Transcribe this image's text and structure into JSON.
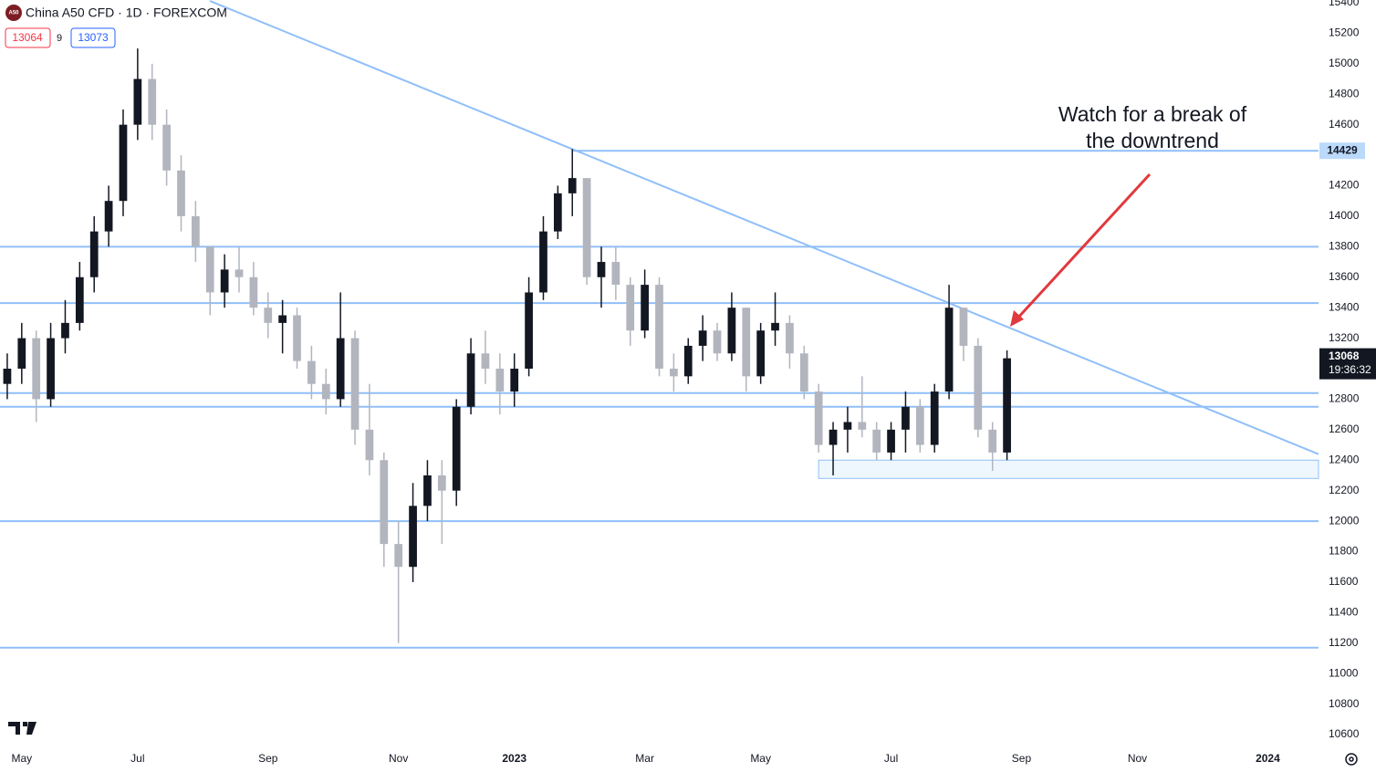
{
  "header": {
    "symbol": "China A50 CFD · 1D · FOREXCOM",
    "logo": "A50",
    "bid": "13064",
    "spread": "9",
    "ask": "13073"
  },
  "chart_data": {
    "type": "candlestick",
    "categories": [
      null,
      "May",
      null,
      null,
      null,
      null,
      null,
      null,
      null,
      "Jul",
      null,
      null,
      null,
      null,
      null,
      null,
      null,
      null,
      "Sep",
      null,
      null,
      null,
      null,
      null,
      null,
      null,
      null,
      "Nov",
      null,
      null,
      null,
      null,
      null,
      null,
      null,
      "2023",
      null,
      null,
      null,
      null,
      null,
      null,
      null,
      null,
      "Mar",
      null,
      null,
      null,
      null,
      null,
      null,
      null,
      "May",
      null,
      null,
      null,
      null,
      null,
      null,
      null,
      null,
      "Jul",
      null,
      null,
      null,
      null,
      null,
      null,
      null,
      null,
      "Sep",
      null,
      null,
      null,
      null,
      null,
      null,
      null,
      "Nov",
      null,
      null,
      null,
      null,
      null,
      null,
      null,
      null,
      "2024",
      null,
      null,
      null
    ],
    "open": [
      12900,
      13000,
      13200,
      12800,
      13200,
      13300,
      13600,
      13900,
      14100,
      14600,
      14900,
      14600,
      14300,
      14000,
      13800,
      13500,
      13650,
      13600,
      13400,
      13300,
      13350,
      13050,
      12900,
      12800,
      13200,
      12600,
      12400,
      11850,
      11700,
      12100,
      12300,
      12200,
      12750,
      13100,
      13000,
      12850,
      13000,
      13500,
      13900,
      14150,
      14250,
      13600,
      13700,
      13550,
      13250,
      13550,
      13000,
      12950,
      13150,
      13250,
      13100,
      13400,
      12950,
      13250,
      13300,
      13100,
      12850,
      12500,
      12600,
      12650,
      12600,
      12450,
      12600,
      12750,
      12500,
      12850,
      13400,
      13150,
      12600,
      12450,
      null,
      null,
      null,
      null,
      null,
      null,
      null,
      null,
      null,
      null,
      null,
      null,
      null,
      null,
      null,
      null,
      null,
      null,
      null,
      null,
      null
    ],
    "high": [
      13100,
      13300,
      13250,
      13300,
      13450,
      13700,
      14000,
      14200,
      14700,
      15100,
      15000,
      14700,
      14400,
      14100,
      13800,
      13750,
      13800,
      13700,
      13500,
      13450,
      13400,
      13150,
      13000,
      13500,
      13250,
      12900,
      12450,
      12000,
      12250,
      12400,
      12400,
      12800,
      13200,
      13250,
      13100,
      13100,
      13600,
      14000,
      14200,
      14440,
      14250,
      13800,
      13800,
      13600,
      13650,
      13600,
      13100,
      13200,
      13350,
      13300,
      13500,
      13400,
      13300,
      13500,
      13350,
      13150,
      12900,
      12650,
      12750,
      12950,
      12650,
      12650,
      12850,
      12800,
      12900,
      13550,
      13400,
      13200,
      12650,
      13120,
      null,
      null,
      null,
      null,
      null,
      null,
      null,
      null,
      null,
      null,
      null,
      null,
      null,
      null,
      null,
      null,
      null,
      null,
      null,
      null,
      null
    ],
    "low": [
      12800,
      12900,
      12650,
      12750,
      13100,
      13250,
      13500,
      13800,
      14000,
      14500,
      14500,
      14200,
      13900,
      13700,
      13350,
      13400,
      13500,
      13350,
      13200,
      13100,
      13000,
      12800,
      12700,
      12750,
      12500,
      12300,
      11700,
      11200,
      11600,
      12000,
      11850,
      12100,
      12700,
      12900,
      12700,
      12750,
      12950,
      13450,
      13850,
      14000,
      13550,
      13400,
      13450,
      13150,
      13200,
      12950,
      12850,
      12900,
      13050,
      13050,
      13050,
      12850,
      12900,
      13150,
      13000,
      12800,
      12450,
      12300,
      12450,
      12550,
      12400,
      12400,
      12450,
      12450,
      12450,
      12800,
      13050,
      12550,
      12330,
      12400,
      null,
      null,
      null,
      null,
      null,
      null,
      null,
      null,
      null,
      null,
      null,
      null,
      null,
      null,
      null,
      null,
      null,
      null,
      null,
      null,
      null
    ],
    "close": [
      13000,
      13200,
      12800,
      13200,
      13300,
      13600,
      13900,
      14100,
      14600,
      14900,
      14600,
      14300,
      14000,
      13800,
      13500,
      13650,
      13600,
      13400,
      13300,
      13350,
      13050,
      12900,
      12800,
      13200,
      12600,
      12400,
      11850,
      11700,
      12100,
      12300,
      12200,
      12750,
      13100,
      13000,
      12850,
      13000,
      13500,
      13900,
      14150,
      14250,
      13600,
      13700,
      13550,
      13250,
      13550,
      13000,
      12950,
      13150,
      13250,
      13100,
      13400,
      12950,
      13250,
      13300,
      13100,
      12850,
      12500,
      12600,
      12650,
      12600,
      12450,
      12600,
      12750,
      12500,
      12850,
      13400,
      13150,
      12600,
      12450,
      13068,
      null,
      null,
      null,
      null,
      null,
      null,
      null,
      null,
      null,
      null,
      null,
      null,
      null,
      null,
      null,
      null,
      null,
      null,
      null,
      null,
      null
    ],
    "up_color": "#131722",
    "down_color": "#b2b5be",
    "ylim": [
      10600,
      15400
    ],
    "yticks": [
      10600,
      10800,
      11000,
      11200,
      11400,
      11600,
      11800,
      12000,
      12200,
      12400,
      12600,
      12800,
      13000,
      13200,
      13400,
      13600,
      13800,
      14000,
      14200,
      14400,
      14600,
      14800,
      15000,
      15200,
      15400
    ],
    "grid": false,
    "levels": [
      {
        "value": 14429,
        "from": 39,
        "axis_label": true
      },
      {
        "value": 13800
      },
      {
        "value": 13430
      },
      {
        "value": 12840
      },
      {
        "value": 12750
      },
      {
        "value": 12000
      },
      {
        "value": 11170
      }
    ],
    "level_color": "#90bff9",
    "trendline": {
      "from": {
        "index": 39,
        "value": 14440
      },
      "to": {
        "index": 65,
        "value": 13430
      }
    },
    "zone": {
      "from": 56,
      "top": 12400,
      "bottom": 12280
    },
    "countdown": "19:36:32",
    "annotation": "Watch for a break of\nthe downtrend"
  }
}
